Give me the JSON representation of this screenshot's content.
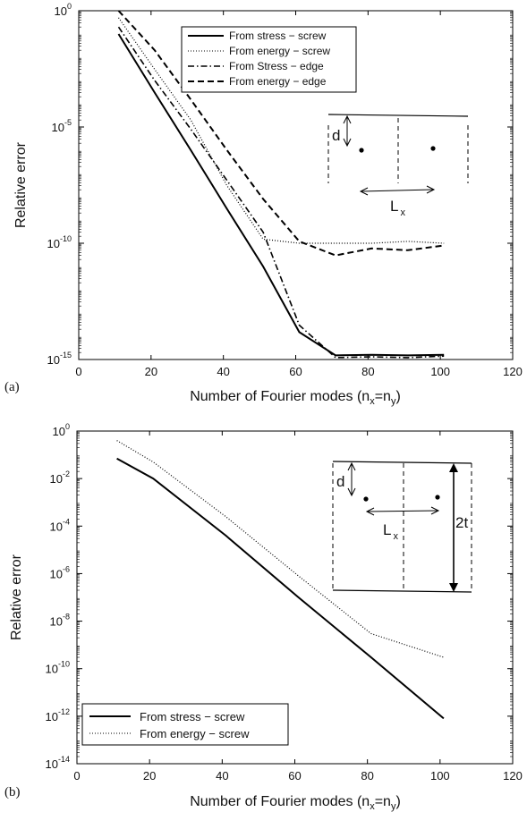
{
  "chart_data": [
    {
      "type": "line",
      "panel_label": "(a)",
      "xlabel": "Number of Fourier modes (n",
      "xlabel_sub1": "x",
      "xlabel_mid": "=n",
      "xlabel_sub2": "y",
      "xlabel_end": ")",
      "ylabel": "Relative error",
      "yscale": "log",
      "xlim": [
        0,
        120
      ],
      "ylim_exp": [
        -15,
        0
      ],
      "x_ticks": [
        "0",
        "20",
        "40",
        "60",
        "80",
        "100",
        "120"
      ],
      "y_ticks_exp": [
        "0",
        "-5",
        "-10",
        "-15"
      ],
      "legend_position": "top-center",
      "series": [
        {
          "name": "From stress − screw",
          "style": "solid",
          "x": [
            11,
            21,
            31,
            41,
            51,
            61,
            71,
            81,
            91,
            101
          ],
          "y": [
            0.1,
            0.0003,
            1e-06,
            3e-09,
            1e-11,
            1.5e-14,
            1.5e-15,
            1.6e-15,
            1.5e-15,
            1.6e-15
          ]
        },
        {
          "name": "From energy − screw",
          "style": "dotted",
          "x": [
            11,
            21,
            31,
            41,
            51,
            61,
            71,
            81,
            91,
            101
          ],
          "y": [
            0.5,
            0.003,
            2e-05,
            3e-08,
            1.5e-10,
            1e-10,
            1e-10,
            1e-10,
            1.2e-10,
            1e-10
          ]
        },
        {
          "name": "From Stress − edge",
          "style": "dashdot",
          "x": [
            11,
            21,
            31,
            41,
            51,
            61,
            71,
            81,
            91,
            101
          ],
          "y": [
            0.2,
            0.001,
            8e-06,
            5e-08,
            3e-10,
            3e-14,
            1.2e-15,
            1.3e-15,
            1.2e-15,
            1.4e-15
          ]
        },
        {
          "name": "From energy − edge",
          "style": "dashed",
          "x": [
            11,
            21,
            31,
            41,
            51,
            61,
            71,
            81,
            91,
            101
          ],
          "y": [
            4,
            0.02,
            0.00015,
            1e-06,
            8e-09,
            1.2e-10,
            3e-11,
            6e-11,
            5e-11,
            8e-11
          ]
        }
      ],
      "inset_labels": {
        "d": "d",
        "L": "L",
        "L_sub": "x"
      }
    },
    {
      "type": "line",
      "panel_label": "(b)",
      "xlabel": "Number of Fourier modes (n",
      "xlabel_sub1": "x",
      "xlabel_mid": "=n",
      "xlabel_sub2": "y",
      "xlabel_end": ")",
      "ylabel": "Relative error",
      "yscale": "log",
      "xlim": [
        0,
        120
      ],
      "ylim_exp": [
        -14,
        0
      ],
      "x_ticks": [
        "0",
        "20",
        "40",
        "60",
        "80",
        "100",
        "120"
      ],
      "y_ticks_exp": [
        "0",
        "-2",
        "-4",
        "-6",
        "-8",
        "-10",
        "-12",
        "-14"
      ],
      "legend_position": "bottom-left",
      "series": [
        {
          "name": "From stress − screw",
          "style": "solid",
          "x": [
            11,
            21,
            41,
            61,
            81,
            101
          ],
          "y": [
            0.07,
            0.01,
            4e-05,
            1e-07,
            3e-10,
            8e-13
          ]
        },
        {
          "name": "From energy − screw",
          "style": "dotted",
          "x": [
            11,
            21,
            41,
            61,
            81,
            101
          ],
          "y": [
            0.4,
            0.05,
            0.00025,
            8e-07,
            3e-09,
            3e-10
          ]
        }
      ],
      "inset_labels": {
        "d": "d",
        "L": "L",
        "L_sub": "x",
        "t": "2t"
      }
    }
  ]
}
